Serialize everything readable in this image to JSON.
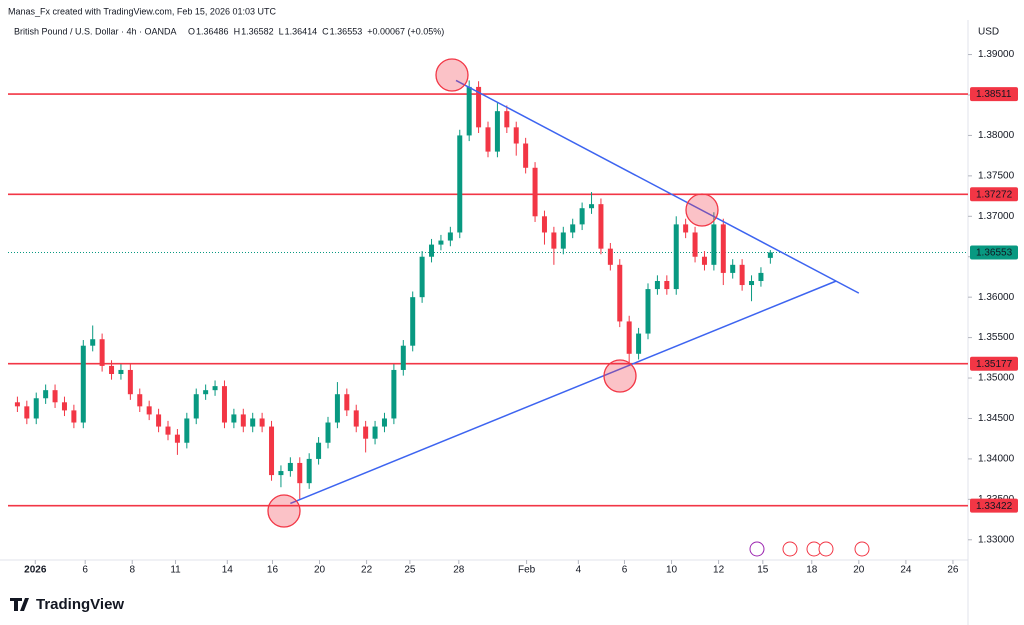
{
  "header": {
    "credit": "Manas_Fx created with TradingView.com, Feb 15, 2026 01:03 UTC",
    "symbol": "British Pound / U.S. Dollar · 4h · OANDA",
    "ohlc_labels": [
      "O",
      "H",
      "L",
      "C"
    ],
    "change": "+0.00067 (+0.05%)"
  },
  "footer": {
    "brand": "TradingView"
  },
  "chart_data": {
    "type": "candlestick",
    "currency": "USD",
    "up_color": "#089981",
    "down_color": "#f23645",
    "open": [
      1.347,
      1.3465,
      1.345,
      1.3475,
      1.3485,
      1.347,
      1.346,
      1.3445,
      1.354,
      1.3548,
      1.3515,
      1.3505,
      1.351,
      1.348,
      1.3465,
      1.3455,
      1.344,
      1.343,
      1.342,
      1.345,
      1.348,
      1.3485,
      1.349,
      1.3445,
      1.3455,
      1.344,
      1.345,
      1.344,
      1.338,
      1.3385,
      1.3395,
      1.337,
      1.34,
      1.342,
      1.3445,
      1.348,
      1.346,
      1.344,
      1.3425,
      1.344,
      1.345,
      1.351,
      1.354,
      1.36,
      1.365,
      1.3665,
      1.367,
      1.368,
      1.38,
      1.386,
      1.381,
      1.378,
      1.383,
      1.381,
      1.379,
      1.376,
      1.37,
      1.368,
      1.366,
      1.368,
      1.369,
      1.371,
      1.3715,
      1.366,
      1.364,
      1.357,
      1.353,
      1.3555,
      1.361,
      1.362,
      1.361,
      1.369,
      1.368,
      1.365,
      1.364,
      1.369,
      1.363,
      1.364,
      1.3615,
      1.362,
      1.36486
    ],
    "high": [
      1.3477,
      1.3472,
      1.3482,
      1.3492,
      1.3492,
      1.3477,
      1.3467,
      1.3547,
      1.3565,
      1.3555,
      1.3522,
      1.3517,
      1.3517,
      1.3487,
      1.3472,
      1.3462,
      1.3447,
      1.3437,
      1.3457,
      1.3487,
      1.3492,
      1.3497,
      1.3497,
      1.3462,
      1.3462,
      1.3457,
      1.3457,
      1.3447,
      1.3392,
      1.3402,
      1.3402,
      1.3407,
      1.3427,
      1.3452,
      1.3495,
      1.3487,
      1.3467,
      1.3447,
      1.3447,
      1.3457,
      1.3517,
      1.3547,
      1.3607,
      1.3657,
      1.3672,
      1.3677,
      1.3687,
      1.3807,
      1.3868,
      1.3867,
      1.3817,
      1.384,
      1.3837,
      1.3817,
      1.3797,
      1.3767,
      1.3707,
      1.3687,
      1.3687,
      1.3697,
      1.3717,
      1.373,
      1.3722,
      1.3667,
      1.3647,
      1.3577,
      1.3562,
      1.3617,
      1.3627,
      1.3627,
      1.37,
      1.3697,
      1.3687,
      1.3657,
      1.3705,
      1.3697,
      1.3647,
      1.3647,
      1.3627,
      1.3637,
      1.36582
    ],
    "low": [
      1.3458,
      1.3443,
      1.3443,
      1.3468,
      1.3463,
      1.3453,
      1.3438,
      1.3438,
      1.3533,
      1.3508,
      1.3498,
      1.3498,
      1.3473,
      1.3458,
      1.3448,
      1.3433,
      1.3423,
      1.3405,
      1.3413,
      1.3443,
      1.3473,
      1.3478,
      1.3438,
      1.3438,
      1.3433,
      1.3433,
      1.3433,
      1.3373,
      1.3365,
      1.3378,
      1.335,
      1.3363,
      1.3393,
      1.3413,
      1.3438,
      1.3453,
      1.3433,
      1.3408,
      1.3418,
      1.3433,
      1.3443,
      1.3503,
      1.3533,
      1.3593,
      1.3643,
      1.3658,
      1.3663,
      1.3673,
      1.3793,
      1.3803,
      1.3773,
      1.3773,
      1.3803,
      1.3775,
      1.3753,
      1.3693,
      1.3665,
      1.364,
      1.3653,
      1.3673,
      1.3683,
      1.3703,
      1.3653,
      1.3633,
      1.3563,
      1.3515,
      1.3523,
      1.3548,
      1.3603,
      1.3603,
      1.3603,
      1.3673,
      1.3643,
      1.3633,
      1.3633,
      1.3615,
      1.3623,
      1.3608,
      1.3595,
      1.3613,
      1.36414
    ],
    "close": [
      1.3465,
      1.345,
      1.3475,
      1.3485,
      1.347,
      1.346,
      1.3445,
      1.354,
      1.3548,
      1.3515,
      1.3505,
      1.351,
      1.348,
      1.3465,
      1.3455,
      1.344,
      1.343,
      1.342,
      1.345,
      1.348,
      1.3485,
      1.349,
      1.3445,
      1.3455,
      1.344,
      1.345,
      1.344,
      1.338,
      1.3385,
      1.3395,
      1.337,
      1.34,
      1.342,
      1.3445,
      1.348,
      1.346,
      1.344,
      1.3425,
      1.344,
      1.345,
      1.351,
      1.354,
      1.36,
      1.365,
      1.3665,
      1.367,
      1.368,
      1.38,
      1.386,
      1.381,
      1.378,
      1.383,
      1.381,
      1.379,
      1.376,
      1.37,
      1.368,
      1.366,
      1.368,
      1.369,
      1.371,
      1.3715,
      1.366,
      1.364,
      1.357,
      1.353,
      1.3555,
      1.361,
      1.362,
      1.361,
      1.369,
      1.368,
      1.365,
      1.364,
      1.369,
      1.363,
      1.364,
      1.3615,
      1.362,
      1.363,
      1.36553
    ],
    "last_price": 1.36553,
    "levels": [
      1.38511,
      1.37272,
      1.35177,
      1.33422
    ],
    "level_color": "#f23645",
    "trendlines": [
      {
        "x": [
          47.6,
          90.4
        ],
        "y": [
          1.3868,
          1.3605
        ]
      },
      {
        "x": [
          30,
          88
        ],
        "y": [
          1.3345,
          1.362
        ]
      }
    ],
    "trendline_color": "#3d64f0",
    "xlim": [
      0,
      102
    ],
    "xticks": [
      {
        "value": 2.9,
        "label": "2026"
      },
      {
        "value": 8.2,
        "label": "6"
      },
      {
        "value": 13.2,
        "label": "8"
      },
      {
        "value": 17.8,
        "label": "11"
      },
      {
        "value": 23.3,
        "label": "14"
      },
      {
        "value": 28.1,
        "label": "16"
      },
      {
        "value": 33.1,
        "label": "20"
      },
      {
        "value": 38.1,
        "label": "22"
      },
      {
        "value": 42.7,
        "label": "25"
      },
      {
        "value": 47.9,
        "label": "28"
      },
      {
        "value": 55.1,
        "label": "Feb"
      },
      {
        "value": 60.6,
        "label": "4"
      },
      {
        "value": 65.5,
        "label": "6"
      },
      {
        "value": 70.5,
        "label": "10"
      },
      {
        "value": 75.5,
        "label": "12"
      },
      {
        "value": 80.2,
        "label": "15"
      },
      {
        "value": 85.4,
        "label": "18"
      },
      {
        "value": 90.4,
        "label": "20"
      },
      {
        "value": 95.4,
        "label": "24"
      },
      {
        "value": 100.4,
        "label": "26"
      }
    ],
    "ylim": [
      1.3275,
      1.3918
    ],
    "yticks": [
      {
        "value": 1.33,
        "label": "1.33000"
      },
      {
        "value": 1.335,
        "label": "1.33500"
      },
      {
        "value": 1.34,
        "label": "1.34000"
      },
      {
        "value": 1.345,
        "label": "1.34500"
      },
      {
        "value": 1.35,
        "label": "1.35000"
      },
      {
        "value": 1.355,
        "label": "1.35500"
      },
      {
        "value": 1.36,
        "label": "1.36000"
      },
      {
        "value": 1.365,
        "label": "1.36500"
      },
      {
        "value": 1.37,
        "label": "1.37000"
      },
      {
        "value": 1.375,
        "label": "1.37500"
      },
      {
        "value": 1.38,
        "label": "1.38000"
      },
      {
        "value": 1.385,
        "label": "1.38500"
      },
      {
        "value": 1.39,
        "label": "1.39000"
      }
    ]
  }
}
